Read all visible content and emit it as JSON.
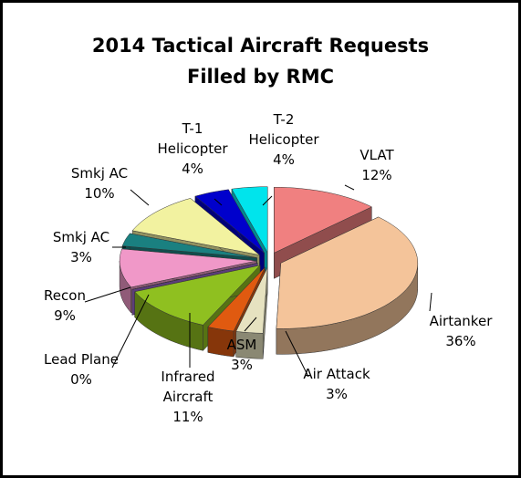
{
  "chart_data": {
    "type": "pie",
    "title": "2014 Tactical Aircraft Requests\nFilled by RMC",
    "categories": [
      "VLAT",
      "Airtanker",
      "Air Attack",
      "ASM",
      "Infrared\nAircraft",
      "Lead Plane",
      "Recon",
      "Smkj AC",
      "Smkj AC",
      "T-1\nHelicopter",
      "T-2\nHelicopter"
    ],
    "values": [
      12,
      36,
      3,
      3,
      11,
      0,
      9,
      3,
      10,
      4,
      4
    ],
    "value_labels": [
      "12%",
      "36%",
      "3%",
      "3%",
      "11%",
      "0%",
      "9%",
      "3%",
      "10%",
      "4%",
      "4%"
    ],
    "colors": [
      "#f08080",
      "#f4c49a",
      "#e6e2c0",
      "#e05a10",
      "#8fc020",
      "#9966cc",
      "#f098c8",
      "#1a8080",
      "#f2f2a0",
      "#0000cc",
      "#00e4ec"
    ]
  }
}
